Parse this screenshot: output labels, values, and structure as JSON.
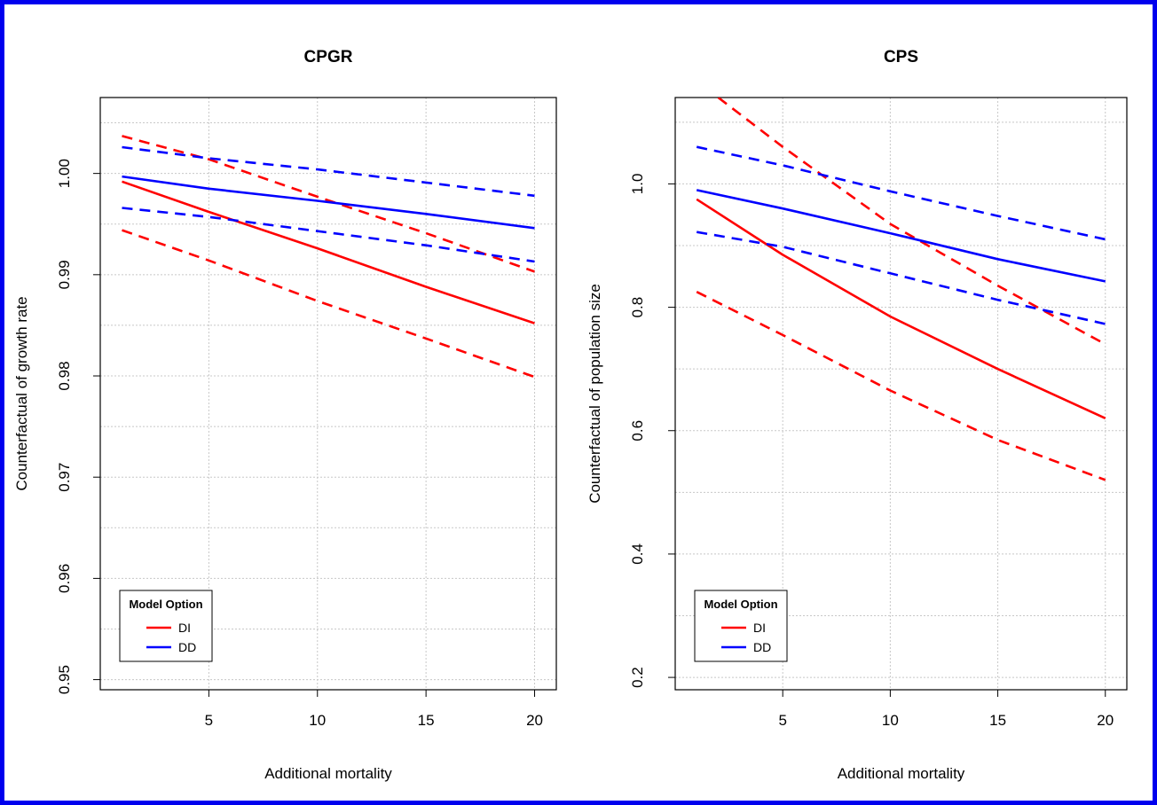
{
  "chart_data": [
    {
      "type": "line",
      "title": "CPGR",
      "xlabel": "Additional mortality",
      "ylabel": "Counterfactual of growth rate",
      "xlim": [
        0,
        21
      ],
      "ylim": [
        0.949,
        1.0075
      ],
      "x_ticks": [
        5,
        10,
        15,
        20
      ],
      "y_ticks": [
        0.95,
        0.96,
        0.97,
        0.98,
        0.99,
        1.0
      ],
      "y_tick_labels": [
        "0.95",
        "0.96",
        "0.97",
        "0.98",
        "0.99",
        "1.00"
      ],
      "grid": true,
      "legend": {
        "title": "Model Option",
        "position": "bottom-left",
        "entries": [
          {
            "label": "DI",
            "color": "#ff0000"
          },
          {
            "label": "DD",
            "color": "#0000ff"
          }
        ]
      },
      "series": [
        {
          "name": "DI",
          "color": "#ff0000",
          "dash": false,
          "x": [
            1,
            5,
            10,
            15,
            20
          ],
          "y": [
            0.9992,
            0.9962,
            0.9926,
            0.9888,
            0.9852
          ]
        },
        {
          "color": "#ff0000",
          "dash": true,
          "x": [
            1,
            5,
            10,
            15,
            20
          ],
          "y": [
            1.0037,
            1.0014,
            0.9977,
            0.9941,
            0.9903
          ]
        },
        {
          "color": "#ff0000",
          "dash": true,
          "x": [
            1,
            5,
            10,
            15,
            20
          ],
          "y": [
            0.9944,
            0.9914,
            0.9874,
            0.9837,
            0.9799
          ]
        },
        {
          "name": "DD",
          "color": "#0000ff",
          "dash": false,
          "x": [
            1,
            5,
            10,
            15,
            20
          ],
          "y": [
            0.9997,
            0.9985,
            0.9973,
            0.996,
            0.9946
          ]
        },
        {
          "color": "#0000ff",
          "dash": true,
          "x": [
            1,
            5,
            10,
            15,
            20
          ],
          "y": [
            1.0026,
            1.0015,
            1.0004,
            0.9991,
            0.9978
          ]
        },
        {
          "color": "#0000ff",
          "dash": true,
          "x": [
            1,
            5,
            10,
            15,
            20
          ],
          "y": [
            0.9966,
            0.9957,
            0.9943,
            0.9929,
            0.9913
          ]
        }
      ]
    },
    {
      "type": "line",
      "title": "CPS",
      "xlabel": "Additional mortality",
      "ylabel": "Counterfactual of population size",
      "xlim": [
        0,
        21
      ],
      "ylim": [
        0.18,
        1.14
      ],
      "x_ticks": [
        5,
        10,
        15,
        20
      ],
      "y_ticks": [
        0.2,
        0.4,
        0.6,
        0.8,
        1.0
      ],
      "y_tick_labels": [
        "0.2",
        "0.4",
        "0.6",
        "0.8",
        "1.0"
      ],
      "grid": true,
      "legend": {
        "title": "Model Option",
        "position": "bottom-left",
        "entries": [
          {
            "label": "DI",
            "color": "#ff0000"
          },
          {
            "label": "DD",
            "color": "#0000ff"
          }
        ]
      },
      "series": [
        {
          "name": "DI",
          "color": "#ff0000",
          "dash": false,
          "x": [
            1,
            5,
            10,
            15,
            20
          ],
          "y": [
            0.975,
            0.885,
            0.785,
            0.7,
            0.62
          ]
        },
        {
          "color": "#ff0000",
          "dash": true,
          "x": [
            2,
            5,
            10,
            15,
            20
          ],
          "y": [
            1.14,
            1.06,
            0.935,
            0.835,
            0.74
          ]
        },
        {
          "color": "#ff0000",
          "dash": true,
          "x": [
            1,
            5,
            10,
            15,
            20
          ],
          "y": [
            0.825,
            0.755,
            0.665,
            0.585,
            0.52
          ]
        },
        {
          "name": "DD",
          "color": "#0000ff",
          "dash": false,
          "x": [
            1,
            5,
            10,
            15,
            20
          ],
          "y": [
            0.99,
            0.96,
            0.92,
            0.878,
            0.842
          ]
        },
        {
          "color": "#0000ff",
          "dash": true,
          "x": [
            1,
            5,
            10,
            15,
            20
          ],
          "y": [
            1.06,
            1.03,
            0.988,
            0.948,
            0.91
          ]
        },
        {
          "color": "#0000ff",
          "dash": true,
          "x": [
            1,
            5,
            10,
            15,
            20
          ],
          "y": [
            0.922,
            0.898,
            0.855,
            0.812,
            0.773
          ]
        }
      ]
    }
  ]
}
